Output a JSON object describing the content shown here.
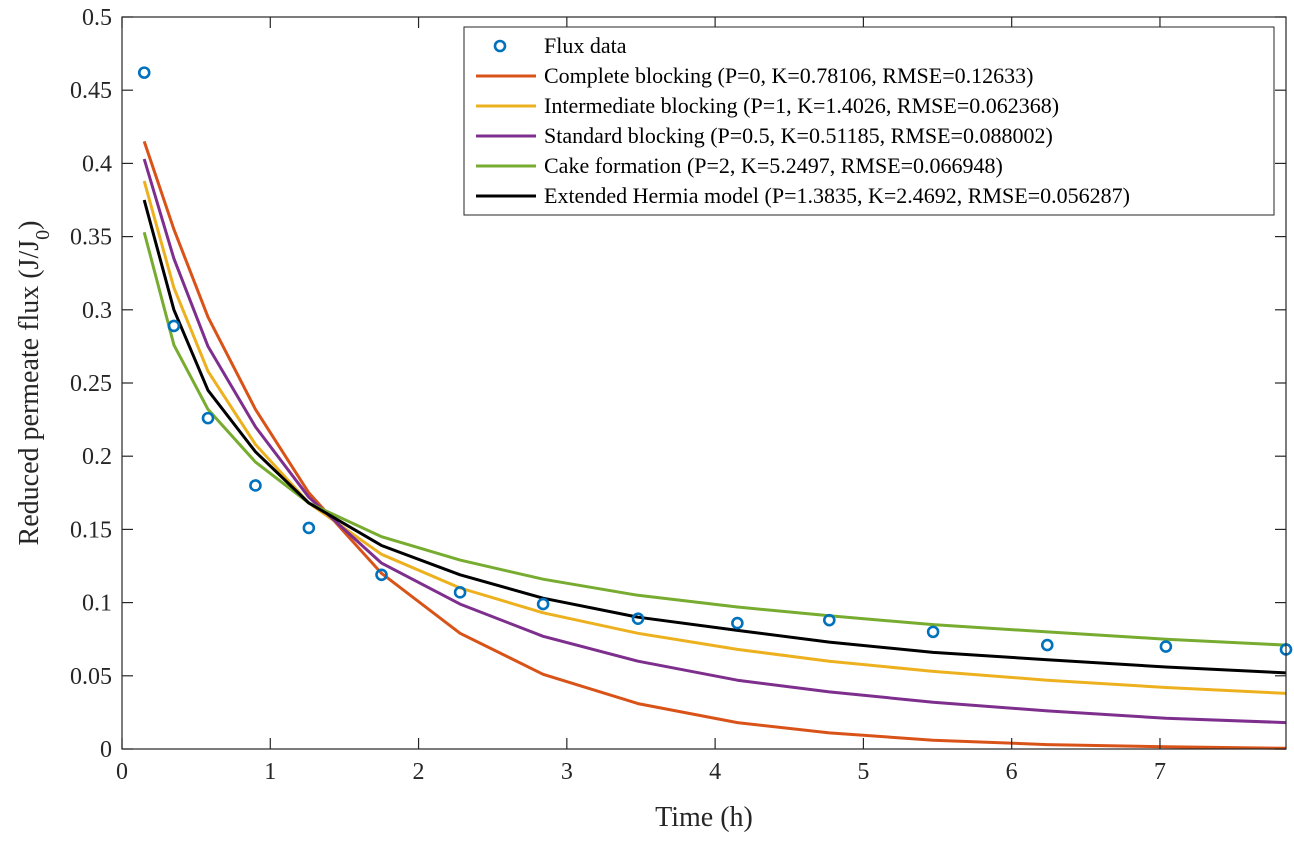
{
  "chart_data": {
    "type": "line",
    "title": "",
    "xlabel": "Time (h)",
    "ylabel": "Reduced permeate flux (J/J",
    "ylabel_subscript": "0",
    "ylabel_suffix": ")",
    "xlim": [
      0,
      7.85
    ],
    "ylim": [
      0,
      0.5
    ],
    "xticks": [
      0,
      1,
      2,
      3,
      4,
      5,
      6,
      7
    ],
    "yticks": [
      0,
      0.05,
      0.1,
      0.15,
      0.2,
      0.25,
      0.3,
      0.35,
      0.4,
      0.45,
      0.5
    ],
    "xtick_labels": [
      "0",
      "1",
      "2",
      "3",
      "4",
      "5",
      "6",
      "7"
    ],
    "ytick_labels": [
      "0",
      "0.05",
      "0.1",
      "0.15",
      "0.2",
      "0.25",
      "0.3",
      "0.35",
      "0.4",
      "0.45",
      "0.5"
    ],
    "grid": false,
    "legend_position": "top-right",
    "scatter": {
      "name": "Flux data",
      "color": "#0072BD",
      "x": [
        0.15,
        0.35,
        0.58,
        0.9,
        1.26,
        1.75,
        2.28,
        2.84,
        3.48,
        4.15,
        4.77,
        5.47,
        6.24,
        7.04,
        7.85
      ],
      "y": [
        0.462,
        0.289,
        0.226,
        0.18,
        0.151,
        0.119,
        0.107,
        0.099,
        0.089,
        0.086,
        0.088,
        0.08,
        0.071,
        0.07,
        0.068
      ]
    },
    "series": [
      {
        "name": "Complete blocking (P=0, K=0.78106, RMSE=0.12633)",
        "color": "#D95319",
        "x": [
          0.15,
          0.35,
          0.58,
          0.9,
          1.26,
          1.75,
          2.28,
          2.84,
          3.48,
          4.15,
          4.77,
          5.47,
          6.24,
          7.04,
          7.85
        ],
        "y": [
          0.415,
          0.355,
          0.295,
          0.232,
          0.175,
          0.12,
          0.079,
          0.051,
          0.031,
          0.018,
          0.011,
          0.006,
          0.003,
          0.0015,
          0.0005
        ]
      },
      {
        "name": "Intermediate blocking (P=1, K=1.4026, RMSE=0.062368)",
        "color": "#EDB120",
        "x": [
          0.15,
          0.35,
          0.58,
          0.9,
          1.26,
          1.75,
          2.28,
          2.84,
          3.48,
          4.15,
          4.77,
          5.47,
          6.24,
          7.04,
          7.85
        ],
        "y": [
          0.388,
          0.315,
          0.258,
          0.208,
          0.168,
          0.133,
          0.11,
          0.093,
          0.079,
          0.068,
          0.06,
          0.053,
          0.047,
          0.042,
          0.038
        ]
      },
      {
        "name": "Standard blocking (P=0.5, K=0.51185, RMSE=0.088002)",
        "color": "#7E2F8E",
        "x": [
          0.15,
          0.35,
          0.58,
          0.9,
          1.26,
          1.75,
          2.28,
          2.84,
          3.48,
          4.15,
          4.77,
          5.47,
          6.24,
          7.04,
          7.85
        ],
        "y": [
          0.403,
          0.335,
          0.275,
          0.22,
          0.172,
          0.127,
          0.099,
          0.077,
          0.06,
          0.047,
          0.039,
          0.032,
          0.026,
          0.021,
          0.018
        ]
      },
      {
        "name": "Cake formation (P=2, K=5.2497, RMSE=0.066948)",
        "color": "#77AC30",
        "x": [
          0.15,
          0.35,
          0.58,
          0.9,
          1.26,
          1.75,
          2.28,
          2.84,
          3.48,
          4.15,
          4.77,
          5.47,
          6.24,
          7.04,
          7.85
        ],
        "y": [
          0.353,
          0.276,
          0.232,
          0.196,
          0.168,
          0.145,
          0.129,
          0.116,
          0.105,
          0.097,
          0.091,
          0.085,
          0.08,
          0.075,
          0.071
        ]
      },
      {
        "name": "Extended Hermia model (P=1.3835, K=2.4692, RMSE=0.056287)",
        "color": "#000000",
        "x": [
          0.15,
          0.35,
          0.58,
          0.9,
          1.26,
          1.75,
          2.28,
          2.84,
          3.48,
          4.15,
          4.77,
          5.47,
          6.24,
          7.04,
          7.85
        ],
        "y": [
          0.375,
          0.3,
          0.245,
          0.203,
          0.168,
          0.139,
          0.119,
          0.103,
          0.09,
          0.081,
          0.073,
          0.066,
          0.061,
          0.056,
          0.052
        ]
      }
    ]
  }
}
